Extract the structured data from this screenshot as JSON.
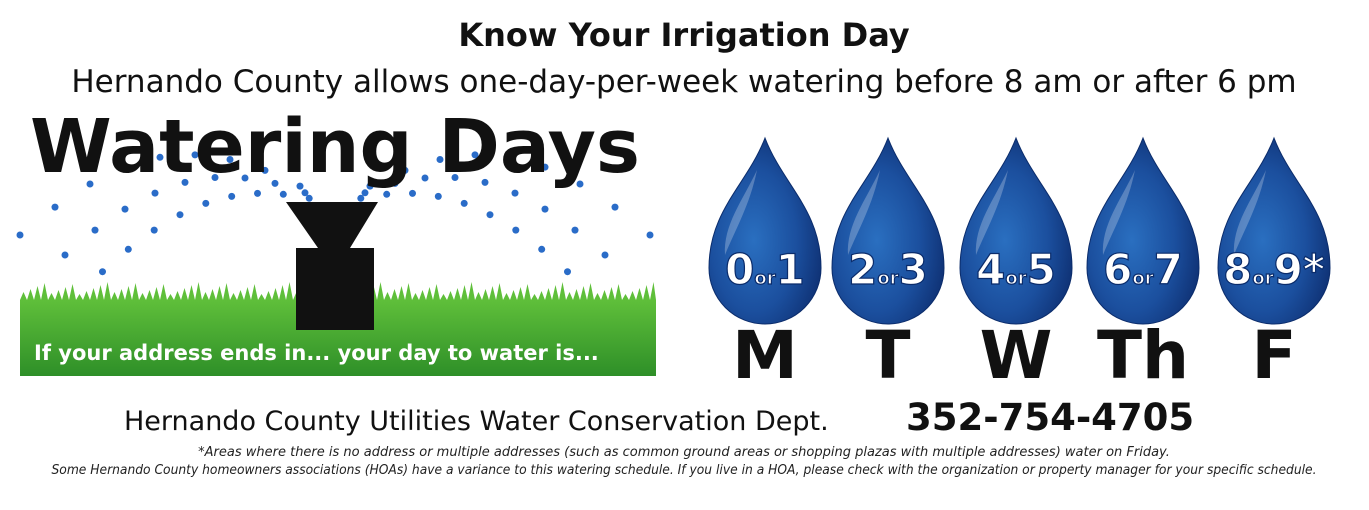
{
  "header": {
    "title": "Know Your Irrigation Day",
    "subtitle": "Hernando County allows one-day-per-week watering before 8 am or after 6 pm"
  },
  "banner": {
    "title": "Watering Days",
    "caption": "If your address ends in... your day to water is..."
  },
  "days": [
    {
      "first": "0",
      "joiner": "or",
      "second": "1",
      "day": "M"
    },
    {
      "first": "2",
      "joiner": "or",
      "second": "3",
      "day": "T"
    },
    {
      "first": "4",
      "joiner": "or",
      "second": "5",
      "day": "W"
    },
    {
      "first": "6",
      "joiner": "or",
      "second": "7",
      "day": "Th"
    },
    {
      "first": "8",
      "joiner": "or",
      "second": "9*",
      "day": "F"
    }
  ],
  "footer": {
    "department": "Hernando County Utilities Water Conservation Dept.",
    "phone": "352-754-4705",
    "notes": [
      "*Areas where there is no address or multiple addresses (such as common ground areas or shopping plazas with multiple addresses) water on Friday.",
      "Some Hernando County homeowners associations (HOAs) have a variance to this watering schedule. If you live in a HOA, please check with the organization or property manager for your specific schedule."
    ]
  }
}
